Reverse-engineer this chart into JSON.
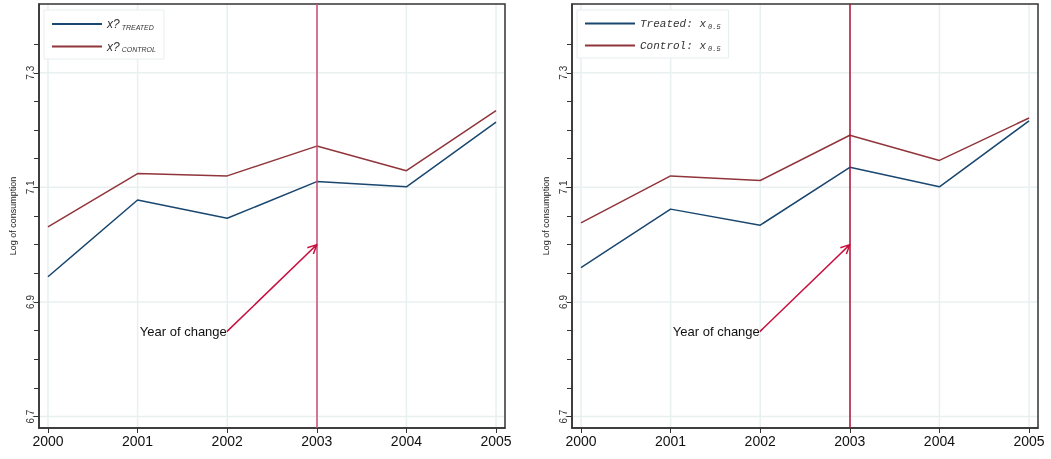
{
  "chart_data": [
    {
      "type": "line",
      "ylabel": "Log of consumption",
      "x": [
        2000,
        2001,
        2002,
        2003,
        2004,
        2005
      ],
      "xlim": [
        1999.9,
        2005.1
      ],
      "xticks": [
        2000,
        2001,
        2002,
        2003,
        2004,
        2005
      ],
      "ylim": [
        6.68,
        7.42
      ],
      "yticks": [
        6.7,
        {
          "value": 6.75,
          "label": null
        },
        {
          "value": 6.8,
          "label": null
        },
        {
          "value": 6.85,
          "label": null
        },
        6.9,
        {
          "value": 6.95,
          "label": null
        },
        {
          "value": 7.0,
          "label": null
        },
        {
          "value": 7.05,
          "label": null
        },
        7.1,
        {
          "value": 7.15,
          "label": null
        },
        {
          "value": 7.2,
          "label": null
        },
        {
          "value": 7.25,
          "label": null
        },
        7.3,
        {
          "value": 7.35,
          "label": null
        }
      ],
      "grid": true,
      "legend": "top left",
      "marker": "none",
      "line_style": "solid",
      "series": [
        {
          "name": "x?$_{TREATED}$",
          "color": "#1a476f",
          "values": [
            6.944,
            7.078,
            7.046,
            7.11,
            7.101,
            7.214
          ]
        },
        {
          "name": "x?$_{CONTROL}$",
          "color": "#90353b",
          "values": [
            7.031,
            7.124,
            7.12,
            7.172,
            7.129,
            7.234
          ]
        }
      ],
      "ref_lines": [
        {
          "axis": "x",
          "value": 2003,
          "color": "#cc4c74"
        }
      ],
      "annotations": [
        {
          "text": "Year of change",
          "x": 2003,
          "y": 7.0
        }
      ]
    },
    {
      "type": "line",
      "ylabel": "Log of consumption",
      "x": [
        2000,
        2001,
        2002,
        2003,
        2004,
        2005
      ],
      "xlim": [
        1999.9,
        2005.1
      ],
      "xticks": [
        2000,
        2001,
        2002,
        2003,
        2004,
        2005
      ],
      "ylim": [
        6.68,
        7.42
      ],
      "yticks": [
        6.7,
        {
          "value": 6.75,
          "label": null
        },
        {
          "value": 6.8,
          "label": null
        },
        {
          "value": 6.85,
          "label": null
        },
        6.9,
        {
          "value": 6.95,
          "label": null
        },
        {
          "value": 7.0,
          "label": null
        },
        {
          "value": 7.05,
          "label": null
        },
        7.1,
        {
          "value": 7.15,
          "label": null
        },
        {
          "value": 7.2,
          "label": null
        },
        {
          "value": 7.25,
          "label": null
        },
        7.3,
        {
          "value": 7.35,
          "label": null
        }
      ],
      "grid": true,
      "legend": "top left",
      "marker": "none",
      "line_style": "solid",
      "series": [
        {
          "name": "Treated: x$_{0.5}$",
          "color": "#1a476f",
          "values": [
            6.96,
            7.062,
            7.034,
            7.135,
            7.101,
            7.216
          ]
        },
        {
          "name": "Control: x$_{0.5}$",
          "color": "#90353b",
          "values": [
            7.038,
            7.12,
            7.112,
            7.191,
            7.147,
            7.221
          ]
        }
      ],
      "ref_lines": [
        {
          "axis": "x",
          "value": 2003,
          "color": "#b0103a"
        }
      ],
      "annotations": [
        {
          "text": "Year of change",
          "x": 2003,
          "y": 7.0
        }
      ]
    }
  ]
}
